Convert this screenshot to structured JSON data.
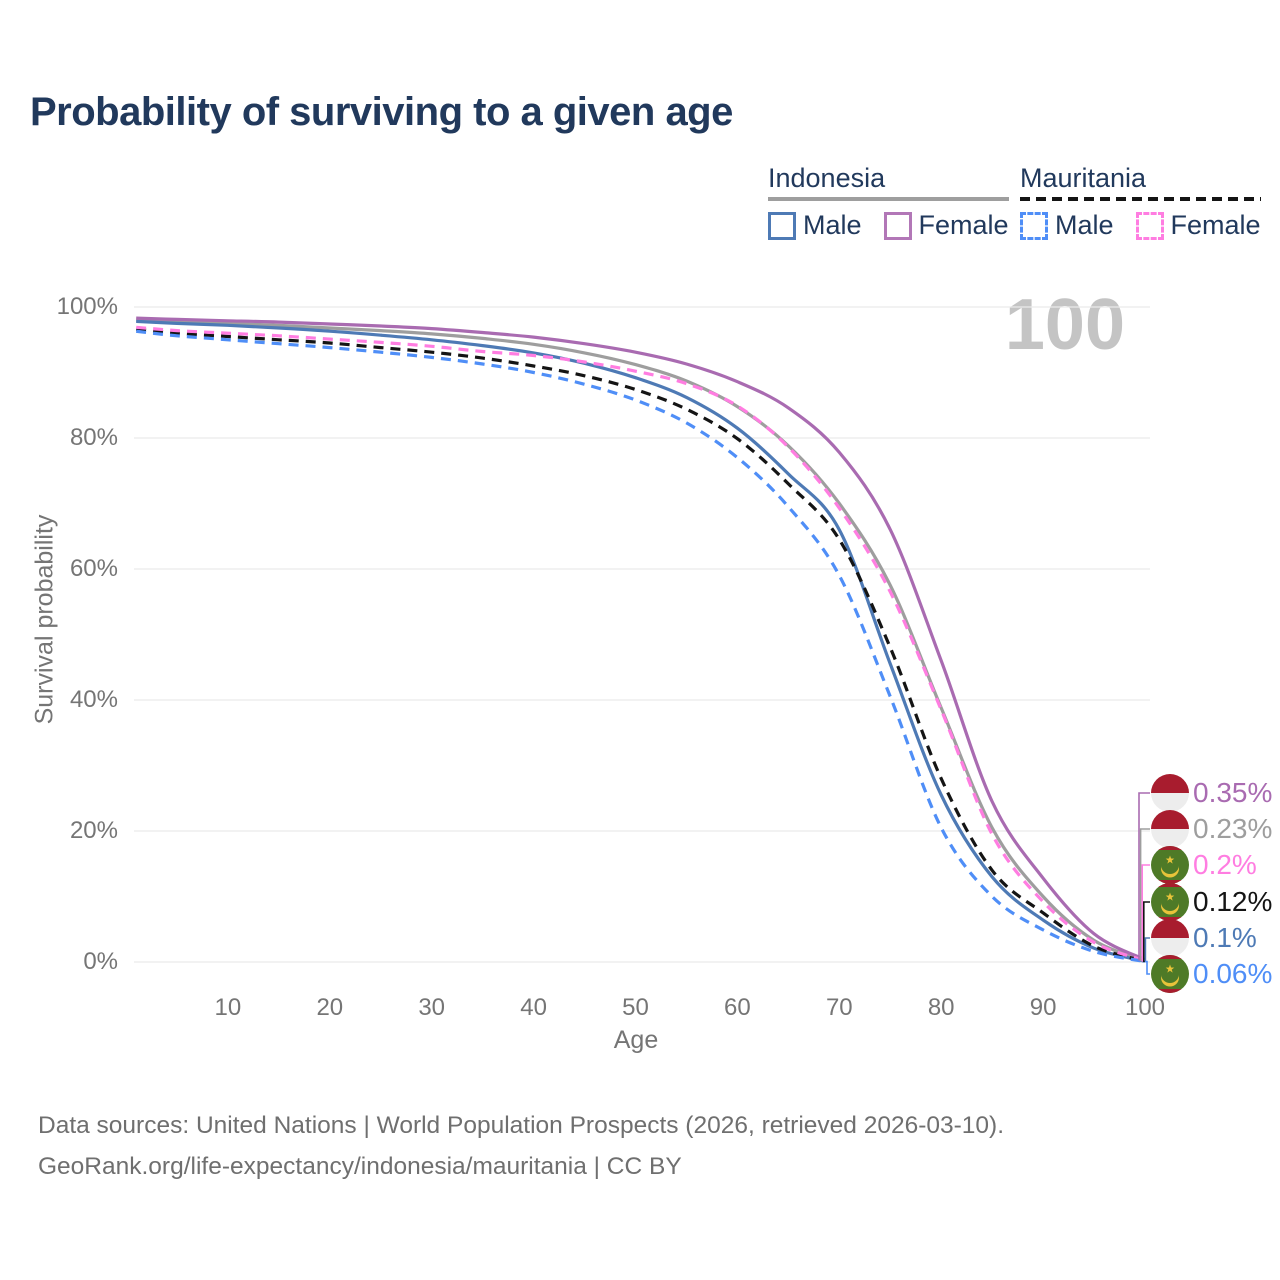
{
  "title": "Probability of surviving to a given age",
  "watermark": "100",
  "legend": {
    "groups": [
      {
        "label": "Indonesia",
        "line_style": "solid",
        "underline_color": "#9e9e9e",
        "items": [
          {
            "label": "Male",
            "color": "#4e7ab5",
            "dash": false
          },
          {
            "label": "Female",
            "color": "#b277b7",
            "dash": false
          }
        ]
      },
      {
        "label": "Mauritania",
        "line_style": "dashed",
        "underline_color": "#141414",
        "items": [
          {
            "label": "Male",
            "color": "#4f8ef7",
            "dash": true
          },
          {
            "label": "Female",
            "color": "#ff7de1",
            "dash": true
          }
        ]
      }
    ]
  },
  "chart_data": {
    "type": "line",
    "title": "Probability of surviving to a given age",
    "xlabel": "Age",
    "ylabel": "Survival probability",
    "xlim": [
      0,
      100
    ],
    "ylim": [
      0,
      100
    ],
    "grid": "horizontal",
    "legend_position": "top-right",
    "x_ticks": [
      10,
      20,
      30,
      40,
      50,
      60,
      70,
      80,
      90,
      100
    ],
    "y_ticks": [
      "0%",
      "20%",
      "40%",
      "60%",
      "80%",
      "100%"
    ],
    "x": [
      1,
      5,
      10,
      15,
      20,
      25,
      30,
      35,
      40,
      45,
      50,
      55,
      60,
      65,
      70,
      75,
      80,
      85,
      90,
      95,
      100
    ],
    "series": [
      {
        "name": "Indonesia All",
        "country": "Indonesia",
        "sex": "all",
        "color": "#9e9e9e",
        "dash": false,
        "flag": "indonesia",
        "end_label": "0.23%",
        "values": [
          98.0,
          97.8,
          97.5,
          97.2,
          96.8,
          96.4,
          95.9,
          95.2,
          94.3,
          93.0,
          91.2,
          88.7,
          84.8,
          78.8,
          70.0,
          57.5,
          38.8,
          20.5,
          10.0,
          3.3,
          0.23
        ]
      },
      {
        "name": "Indonesia Male",
        "country": "Indonesia",
        "sex": "male",
        "color": "#4e7ab5",
        "dash": false,
        "flag": "indonesia",
        "end_label": "0.1%",
        "values": [
          97.8,
          97.5,
          97.2,
          96.8,
          96.3,
          95.7,
          95.0,
          94.1,
          93.0,
          91.4,
          89.2,
          86.2,
          81.5,
          74.5,
          66.0,
          45.5,
          25.5,
          13.0,
          6.4,
          2.1,
          0.1
        ]
      },
      {
        "name": "Indonesia Female",
        "country": "Indonesia",
        "sex": "female",
        "color": "#a96bb1",
        "dash": false,
        "flag": "indonesia",
        "end_label": "0.35%",
        "values": [
          98.3,
          98.1,
          97.9,
          97.7,
          97.4,
          97.1,
          96.7,
          96.1,
          95.4,
          94.4,
          93.1,
          91.3,
          88.6,
          84.6,
          77.8,
          66.0,
          46.0,
          24.5,
          12.8,
          4.3,
          0.35
        ]
      },
      {
        "name": "Mauritania All",
        "country": "Mauritania",
        "sex": "all",
        "color": "#141414",
        "dash": true,
        "flag": "mauritania",
        "end_label": "0.12%",
        "values": [
          96.6,
          96.0,
          95.5,
          95.0,
          94.5,
          93.8,
          93.1,
          92.2,
          91.0,
          89.5,
          87.4,
          84.4,
          79.9,
          73.0,
          64.5,
          48.0,
          28.0,
          14.0,
          7.5,
          2.4,
          0.12
        ]
      },
      {
        "name": "Mauritania Female",
        "country": "Mauritania",
        "sex": "female",
        "color": "#ff7de1",
        "dash": true,
        "flag": "mauritania",
        "end_label": "0.2%",
        "values": [
          96.9,
          96.4,
          96.0,
          95.6,
          95.1,
          94.6,
          94.0,
          93.2,
          92.6,
          91.6,
          90.2,
          88.3,
          84.9,
          78.6,
          69.3,
          56.5,
          38.5,
          19.5,
          9.2,
          3.0,
          0.2
        ]
      },
      {
        "name": "Mauritania Male",
        "country": "Mauritania",
        "sex": "male",
        "color": "#4f8ef7",
        "dash": true,
        "flag": "mauritania",
        "end_label": "0.06%",
        "values": [
          96.3,
          95.6,
          95.0,
          94.4,
          93.8,
          93.1,
          92.3,
          91.3,
          90.0,
          88.2,
          85.8,
          82.3,
          77.0,
          69.5,
          59.0,
          40.5,
          20.5,
          10.0,
          4.9,
          1.6,
          0.06
        ]
      }
    ]
  },
  "flag_colors": {
    "indonesia_red": "#a81c2e",
    "indonesia_white": "#ededed",
    "mauritania_green": "#4e7a27",
    "mauritania_gold": "#e8c33a",
    "mauritania_red": "#a81c2e"
  },
  "footer": {
    "line1": "Data sources: United Nations | World Population Prospects (2026, retrieved 2026-03-10).",
    "line2": "GeoRank.org/life-expectancy/indonesia/mauritania | CC BY"
  }
}
